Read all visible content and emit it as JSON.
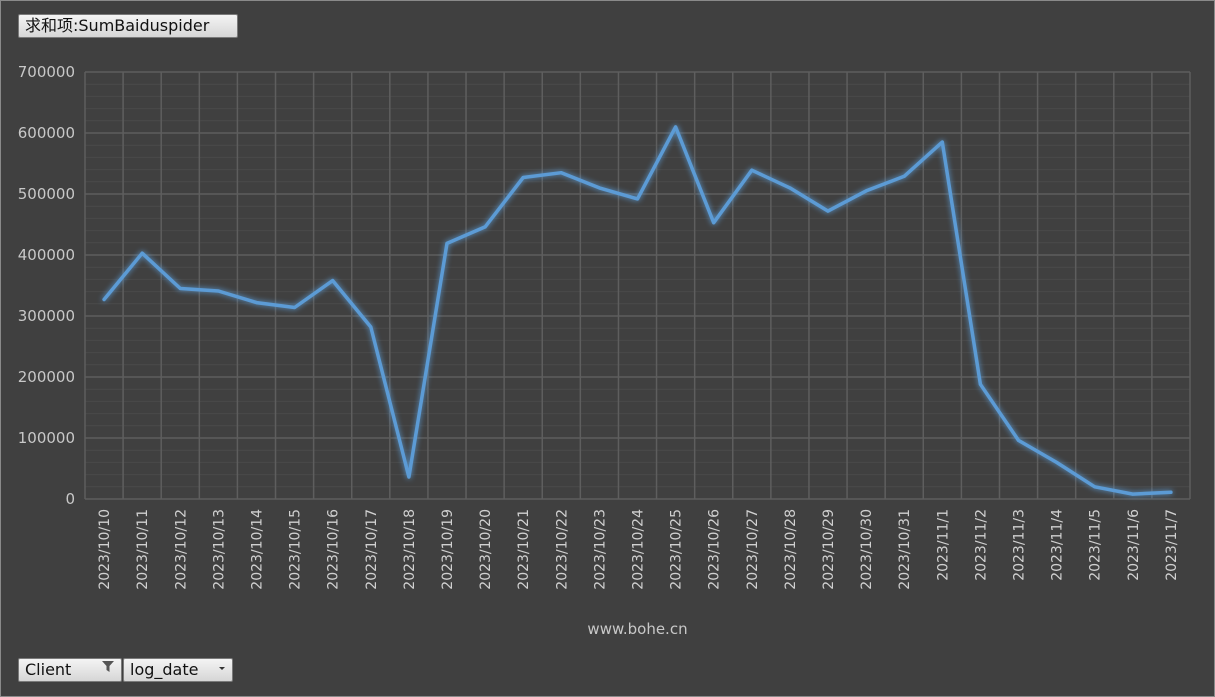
{
  "value_field_button": "求和项:SumBaiduspider",
  "axis_fields": [
    {
      "label": "Client",
      "icon": "filter-icon"
    },
    {
      "label": "log_date",
      "icon": "dropdown-arrow-icon"
    }
  ],
  "colors": {
    "background": "#404040",
    "line": "#5b9bd5",
    "grid": "#5e5e5e"
  },
  "chart_data": {
    "type": "line",
    "xlabel": "www.bohe.cn",
    "ylabel": "",
    "ylim": [
      0,
      700000
    ],
    "yticks": [
      "0",
      "100000",
      "200000",
      "300000",
      "400000",
      "500000",
      "600000",
      "700000"
    ],
    "grid": true,
    "legend": "none",
    "categories": [
      "2023/10/10",
      "2023/10/11",
      "2023/10/12",
      "2023/10/13",
      "2023/10/14",
      "2023/10/15",
      "2023/10/16",
      "2023/10/17",
      "2023/10/18",
      "2023/10/19",
      "2023/10/20",
      "2023/10/21",
      "2023/10/22",
      "2023/10/23",
      "2023/10/24",
      "2023/10/25",
      "2023/10/26",
      "2023/10/27",
      "2023/10/28",
      "2023/10/29",
      "2023/10/30",
      "2023/10/31",
      "2023/11/1",
      "2023/11/2",
      "2023/11/3",
      "2023/11/4",
      "2023/11/5",
      "2023/11/6",
      "2023/11/7"
    ],
    "series": [
      {
        "values": [
          327000,
          403000,
          345000,
          341000,
          322000,
          314000,
          358000,
          282000,
          36000,
          419000,
          446000,
          527000,
          535000,
          510000,
          492000,
          610000,
          453000,
          539000,
          510000,
          472000,
          505000,
          529000,
          585000,
          188000,
          96000,
          60000,
          20000,
          8000,
          11000
        ]
      }
    ]
  }
}
